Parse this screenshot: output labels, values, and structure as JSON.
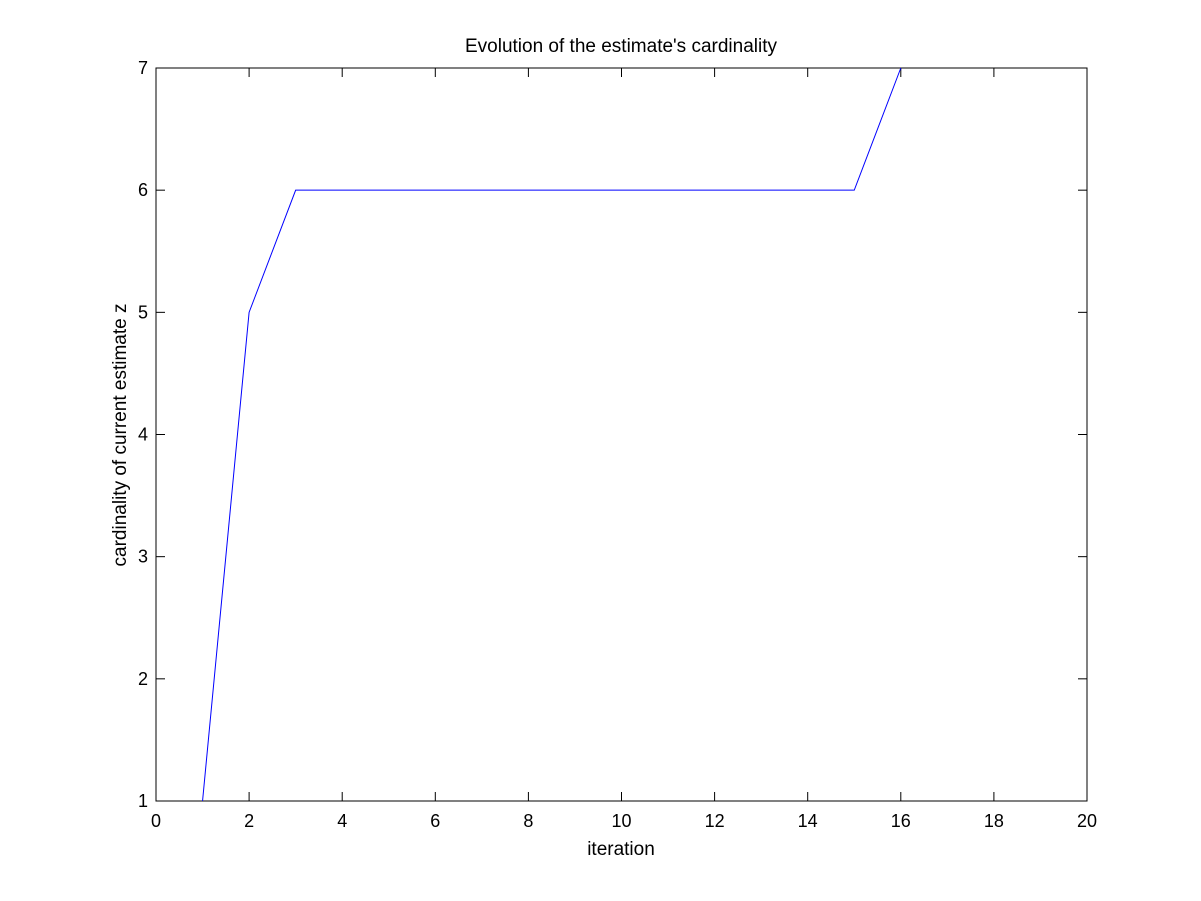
{
  "chart_data": {
    "type": "line",
    "title": "Evolution of the estimate's cardinality",
    "xlabel": "iteration",
    "ylabel": "cardinality of current estimate z",
    "xlim": [
      0,
      20
    ],
    "ylim": [
      1,
      7
    ],
    "x_ticks": [
      "0",
      "2",
      "4",
      "6",
      "8",
      "10",
      "12",
      "14",
      "16",
      "18",
      "20"
    ],
    "y_ticks": [
      "1",
      "2",
      "3",
      "4",
      "5",
      "6",
      "7"
    ],
    "grid": false,
    "series": [
      {
        "color": "#0000ff",
        "x": [
          1,
          2,
          3,
          4,
          5,
          6,
          7,
          8,
          9,
          10,
          11,
          12,
          13,
          14,
          15,
          16
        ],
        "y": [
          1,
          5,
          6,
          6,
          6,
          6,
          6,
          6,
          6,
          6,
          6,
          6,
          6,
          6,
          6,
          7
        ]
      }
    ]
  }
}
